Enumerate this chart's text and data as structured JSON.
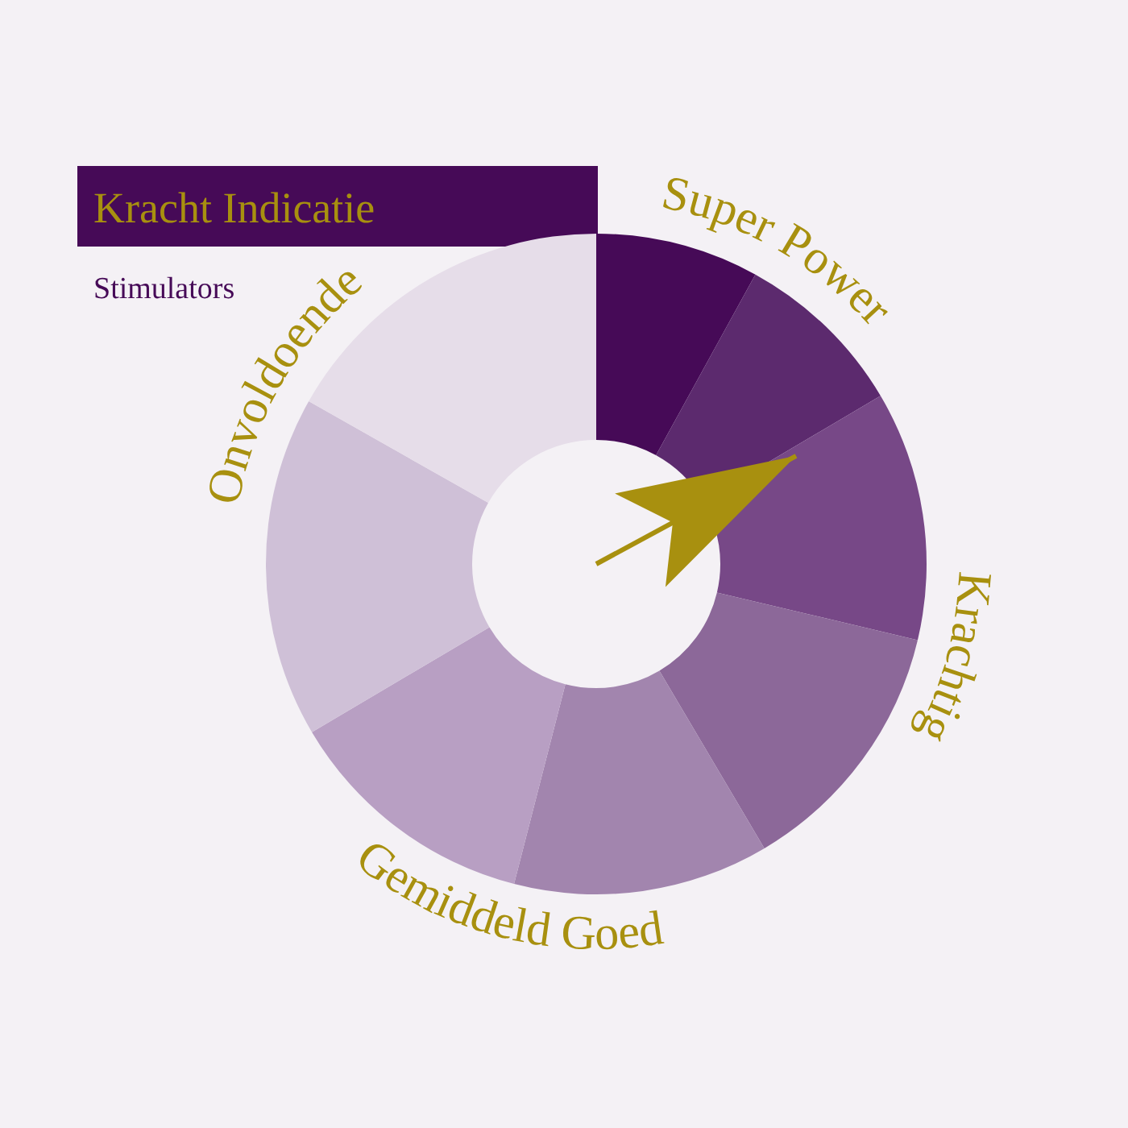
{
  "chart_data": {
    "type": "donut",
    "title": "Kracht Indicatie",
    "subtitle": "Stimulators",
    "categories": [
      "Super Power",
      null,
      "Krachtig",
      null,
      "Gemiddeld Goed",
      null,
      "Onvoldoende",
      null
    ],
    "values": [
      8,
      8.5,
      12.2,
      12.8,
      12.5,
      12.5,
      16.7,
      16.8
    ],
    "colors": [
      "#460a57",
      "#5c2a6e",
      "#774887",
      "#8c6899",
      "#a285ae",
      "#b89fc3",
      "#cfc0d7",
      "#e6dde9"
    ],
    "needle": "Krachtig"
  }
}
